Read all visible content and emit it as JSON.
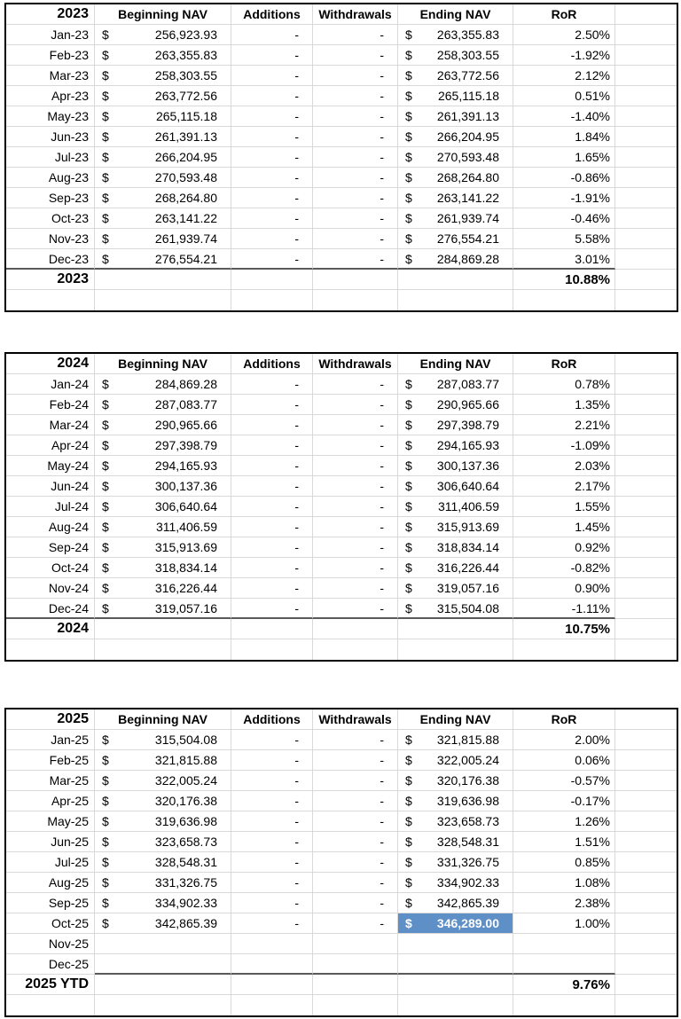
{
  "styles": {
    "highlight_fill": "#5e8fc6",
    "highlight_text": "#ffffff",
    "grid_line": "#d9d9d9",
    "outer_border": "#000000",
    "total_border": "#595959"
  },
  "tables": [
    {
      "headers": {
        "year": "2023",
        "beginning_nav": "Beginning NAV",
        "additions": "Additions",
        "withdrawals": "Withdrawals",
        "ending_nav": "Ending NAV",
        "ror": "RoR"
      },
      "rows": [
        {
          "month": "Jan-23",
          "beg_cur": "$",
          "beg": "256,923.93",
          "add": "-",
          "wd": "-",
          "end_cur": "$",
          "end": "263,355.83",
          "ror": "2.50%"
        },
        {
          "month": "Feb-23",
          "beg_cur": "$",
          "beg": "263,355.83",
          "add": "-",
          "wd": "-",
          "end_cur": "$",
          "end": "258,303.55",
          "ror": "-1.92%"
        },
        {
          "month": "Mar-23",
          "beg_cur": "$",
          "beg": "258,303.55",
          "add": "-",
          "wd": "-",
          "end_cur": "$",
          "end": "263,772.56",
          "ror": "2.12%"
        },
        {
          "month": "Apr-23",
          "beg_cur": "$",
          "beg": "263,772.56",
          "add": "-",
          "wd": "-",
          "end_cur": "$",
          "end": "265,115.18",
          "ror": "0.51%"
        },
        {
          "month": "May-23",
          "beg_cur": "$",
          "beg": "265,115.18",
          "add": "-",
          "wd": "-",
          "end_cur": "$",
          "end": "261,391.13",
          "ror": "-1.40%"
        },
        {
          "month": "Jun-23",
          "beg_cur": "$",
          "beg": "261,391.13",
          "add": "-",
          "wd": "-",
          "end_cur": "$",
          "end": "266,204.95",
          "ror": "1.84%"
        },
        {
          "month": "Jul-23",
          "beg_cur": "$",
          "beg": "266,204.95",
          "add": "-",
          "wd": "-",
          "end_cur": "$",
          "end": "270,593.48",
          "ror": "1.65%"
        },
        {
          "month": "Aug-23",
          "beg_cur": "$",
          "beg": "270,593.48",
          "add": "-",
          "wd": "-",
          "end_cur": "$",
          "end": "268,264.80",
          "ror": "-0.86%"
        },
        {
          "month": "Sep-23",
          "beg_cur": "$",
          "beg": "268,264.80",
          "add": "-",
          "wd": "-",
          "end_cur": "$",
          "end": "263,141.22",
          "ror": "-1.91%"
        },
        {
          "month": "Oct-23",
          "beg_cur": "$",
          "beg": "263,141.22",
          "add": "-",
          "wd": "-",
          "end_cur": "$",
          "end": "261,939.74",
          "ror": "-0.46%"
        },
        {
          "month": "Nov-23",
          "beg_cur": "$",
          "beg": "261,939.74",
          "add": "-",
          "wd": "-",
          "end_cur": "$",
          "end": "276,554.21",
          "ror": "5.58%"
        },
        {
          "month": "Dec-23",
          "beg_cur": "$",
          "beg": "276,554.21",
          "add": "-",
          "wd": "-",
          "end_cur": "$",
          "end": "284,869.28",
          "ror": "3.01%"
        }
      ],
      "total": {
        "label": "2023",
        "ror": "10.88%"
      }
    },
    {
      "headers": {
        "year": "2024",
        "beginning_nav": "Beginning NAV",
        "additions": "Additions",
        "withdrawals": "Withdrawals",
        "ending_nav": "Ending NAV",
        "ror": "RoR"
      },
      "rows": [
        {
          "month": "Jan-24",
          "beg_cur": "$",
          "beg": "284,869.28",
          "add": "-",
          "wd": "-",
          "end_cur": "$",
          "end": "287,083.77",
          "ror": "0.78%"
        },
        {
          "month": "Feb-24",
          "beg_cur": "$",
          "beg": "287,083.77",
          "add": "-",
          "wd": "-",
          "end_cur": "$",
          "end": "290,965.66",
          "ror": "1.35%"
        },
        {
          "month": "Mar-24",
          "beg_cur": "$",
          "beg": "290,965.66",
          "add": "-",
          "wd": "-",
          "end_cur": "$",
          "end": "297,398.79",
          "ror": "2.21%"
        },
        {
          "month": "Apr-24",
          "beg_cur": "$",
          "beg": "297,398.79",
          "add": "-",
          "wd": "-",
          "end_cur": "$",
          "end": "294,165.93",
          "ror": "-1.09%"
        },
        {
          "month": "May-24",
          "beg_cur": "$",
          "beg": "294,165.93",
          "add": "-",
          "wd": "-",
          "end_cur": "$",
          "end": "300,137.36",
          "ror": "2.03%"
        },
        {
          "month": "Jun-24",
          "beg_cur": "$",
          "beg": "300,137.36",
          "add": "-",
          "wd": "-",
          "end_cur": "$",
          "end": "306,640.64",
          "ror": "2.17%"
        },
        {
          "month": "Jul-24",
          "beg_cur": "$",
          "beg": "306,640.64",
          "add": "-",
          "wd": "-",
          "end_cur": "$",
          "end": "311,406.59",
          "ror": "1.55%"
        },
        {
          "month": "Aug-24",
          "beg_cur": "$",
          "beg": "311,406.59",
          "add": "-",
          "wd": "-",
          "end_cur": "$",
          "end": "315,913.69",
          "ror": "1.45%"
        },
        {
          "month": "Sep-24",
          "beg_cur": "$",
          "beg": "315,913.69",
          "add": "-",
          "wd": "-",
          "end_cur": "$",
          "end": "318,834.14",
          "ror": "0.92%"
        },
        {
          "month": "Oct-24",
          "beg_cur": "$",
          "beg": "318,834.14",
          "add": "-",
          "wd": "-",
          "end_cur": "$",
          "end": "316,226.44",
          "ror": "-0.82%"
        },
        {
          "month": "Nov-24",
          "beg_cur": "$",
          "beg": "316,226.44",
          "add": "-",
          "wd": "-",
          "end_cur": "$",
          "end": "319,057.16",
          "ror": "0.90%"
        },
        {
          "month": "Dec-24",
          "beg_cur": "$",
          "beg": "319,057.16",
          "add": "-",
          "wd": "-",
          "end_cur": "$",
          "end": "315,504.08",
          "ror": "-1.11%"
        }
      ],
      "total": {
        "label": "2024",
        "ror": "10.75%"
      }
    },
    {
      "headers": {
        "year": "2025",
        "beginning_nav": "Beginning NAV",
        "additions": "Additions",
        "withdrawals": "Withdrawals",
        "ending_nav": "Ending NAV",
        "ror": "RoR"
      },
      "rows": [
        {
          "month": "Jan-25",
          "beg_cur": "$",
          "beg": "315,504.08",
          "add": "-",
          "wd": "-",
          "end_cur": "$",
          "end": "321,815.88",
          "ror": "2.00%"
        },
        {
          "month": "Feb-25",
          "beg_cur": "$",
          "beg": "321,815.88",
          "add": "-",
          "wd": "-",
          "end_cur": "$",
          "end": "322,005.24",
          "ror": "0.06%"
        },
        {
          "month": "Mar-25",
          "beg_cur": "$",
          "beg": "322,005.24",
          "add": "-",
          "wd": "-",
          "end_cur": "$",
          "end": "320,176.38",
          "ror": "-0.57%"
        },
        {
          "month": "Apr-25",
          "beg_cur": "$",
          "beg": "320,176.38",
          "add": "-",
          "wd": "-",
          "end_cur": "$",
          "end": "319,636.98",
          "ror": "-0.17%"
        },
        {
          "month": "May-25",
          "beg_cur": "$",
          "beg": "319,636.98",
          "add": "-",
          "wd": "-",
          "end_cur": "$",
          "end": "323,658.73",
          "ror": "1.26%"
        },
        {
          "month": "Jun-25",
          "beg_cur": "$",
          "beg": "323,658.73",
          "add": "-",
          "wd": "-",
          "end_cur": "$",
          "end": "328,548.31",
          "ror": "1.51%"
        },
        {
          "month": "Jul-25",
          "beg_cur": "$",
          "beg": "328,548.31",
          "add": "-",
          "wd": "-",
          "end_cur": "$",
          "end": "331,326.75",
          "ror": "0.85%"
        },
        {
          "month": "Aug-25",
          "beg_cur": "$",
          "beg": "331,326.75",
          "add": "-",
          "wd": "-",
          "end_cur": "$",
          "end": "334,902.33",
          "ror": "1.08%"
        },
        {
          "month": "Sep-25",
          "beg_cur": "$",
          "beg": "334,902.33",
          "add": "-",
          "wd": "-",
          "end_cur": "$",
          "end": "342,865.39",
          "ror": "2.38%"
        },
        {
          "month": "Oct-25",
          "beg_cur": "$",
          "beg": "342,865.39",
          "add": "-",
          "wd": "-",
          "end_cur": "$",
          "end": "346,289.00",
          "ror": "1.00%",
          "end_highlight": true
        },
        {
          "month": "Nov-25",
          "beg_cur": "",
          "beg": "",
          "add": "",
          "wd": "",
          "end_cur": "",
          "end": "",
          "ror": ""
        },
        {
          "month": "Dec-25",
          "beg_cur": "",
          "beg": "",
          "add": "",
          "wd": "",
          "end_cur": "",
          "end": "",
          "ror": ""
        }
      ],
      "total": {
        "label": "2025 YTD",
        "ror": "9.76%"
      }
    }
  ]
}
